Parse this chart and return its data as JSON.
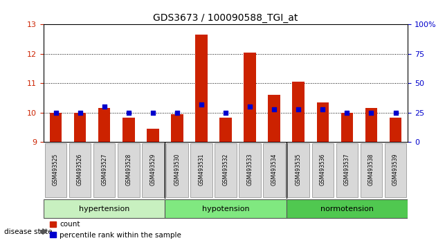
{
  "title": "GDS3673 / 100090588_TGI_at",
  "samples": [
    "GSM493525",
    "GSM493526",
    "GSM493527",
    "GSM493528",
    "GSM493529",
    "GSM493530",
    "GSM493531",
    "GSM493532",
    "GSM493533",
    "GSM493534",
    "GSM493535",
    "GSM493536",
    "GSM493537",
    "GSM493538",
    "GSM493539"
  ],
  "red_values": [
    10.0,
    10.0,
    10.15,
    9.82,
    9.45,
    9.95,
    12.65,
    9.82,
    12.05,
    10.6,
    11.05,
    10.35,
    10.0,
    10.15,
    9.82
  ],
  "blue_values": [
    25,
    25,
    30,
    25,
    25,
    25,
    32,
    25,
    30,
    28,
    28,
    28,
    25,
    25,
    25
  ],
  "ylim_left": [
    9,
    13
  ],
  "ylim_right": [
    0,
    100
  ],
  "yticks_left": [
    9,
    10,
    11,
    12,
    13
  ],
  "yticks_right": [
    0,
    25,
    50,
    75,
    100
  ],
  "ytick_labels_right": [
    "0",
    "25",
    "50",
    "75",
    "100%"
  ],
  "baseline": 9,
  "groups": [
    {
      "label": "hypertension",
      "start": 0,
      "end": 5,
      "color": "#c8f0c0"
    },
    {
      "label": "hypotension",
      "start": 5,
      "end": 10,
      "color": "#80e880"
    },
    {
      "label": "normotension",
      "start": 10,
      "end": 15,
      "color": "#50c850"
    }
  ],
  "bar_color": "#cc2200",
  "blue_color": "#0000cc",
  "bar_width": 0.5,
  "grid_color": "#000000",
  "bg_color": "#ffffff",
  "tick_label_color_left": "#cc2200",
  "tick_label_color_right": "#0000cc",
  "legend_items": [
    {
      "color": "#cc2200",
      "label": "count"
    },
    {
      "color": "#0000cc",
      "label": "percentile rank within the sample"
    }
  ],
  "disease_state_label": "disease state"
}
